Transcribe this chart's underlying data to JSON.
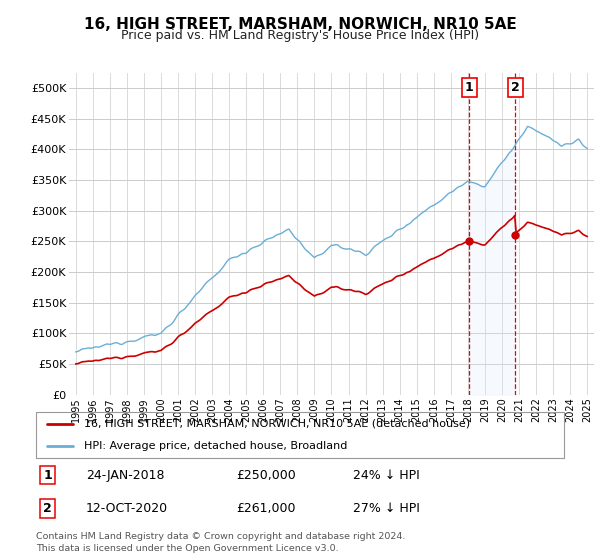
{
  "title": "16, HIGH STREET, MARSHAM, NORWICH, NR10 5AE",
  "subtitle": "Price paid vs. HM Land Registry's House Price Index (HPI)",
  "legend_line1": "16, HIGH STREET, MARSHAM, NORWICH, NR10 5AE (detached house)",
  "legend_line2": "HPI: Average price, detached house, Broadland",
  "transaction1_date": "24-JAN-2018",
  "transaction1_price": "£250,000",
  "transaction1_hpi": "24% ↓ HPI",
  "transaction2_date": "12-OCT-2020",
  "transaction2_price": "£261,000",
  "transaction2_hpi": "27% ↓ HPI",
  "footer": "Contains HM Land Registry data © Crown copyright and database right 2024.\nThis data is licensed under the Open Government Licence v3.0.",
  "hpi_color": "#6baed6",
  "property_color": "#cc0000",
  "vline_color": "#ee0000",
  "plot_bg_color": "#ffffff",
  "fig_bg_color": "#ffffff",
  "grid_color": "#cccccc",
  "shade_color": "#ddeeff",
  "ylim": [
    0,
    525000
  ],
  "yticks": [
    0,
    50000,
    100000,
    150000,
    200000,
    250000,
    300000,
    350000,
    400000,
    450000,
    500000
  ],
  "ytick_labels": [
    "£0",
    "£50K",
    "£100K",
    "£150K",
    "£200K",
    "£250K",
    "£300K",
    "£350K",
    "£400K",
    "£450K",
    "£500K"
  ],
  "sale1_year": 2018.07,
  "sale1_price": 250000,
  "sale2_year": 2020.79,
  "sale2_price": 261000
}
